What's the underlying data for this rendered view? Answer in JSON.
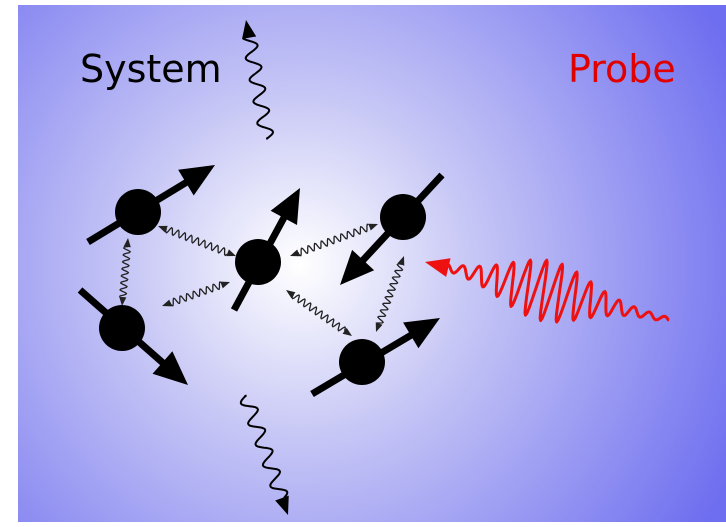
{
  "labels": {
    "system": "System",
    "probe": "Probe"
  }
}
